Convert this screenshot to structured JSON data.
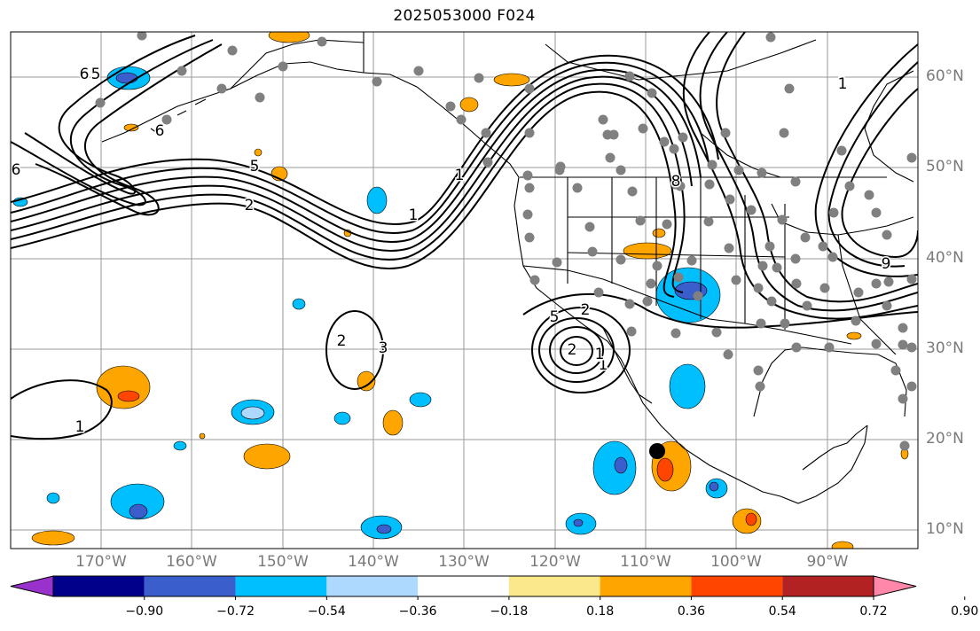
{
  "title": "2025053000 F024",
  "map": {
    "type": "weather-forecast-map",
    "projection": "equirectangular",
    "lon_range": [
      -180,
      -80
    ],
    "lat_range": [
      8,
      65
    ],
    "gridlines": true,
    "lon_labels": [
      "170°W",
      "160°W",
      "150°W",
      "140°W",
      "130°W",
      "120°W",
      "110°W",
      "100°W",
      "90°W"
    ],
    "lat_labels": [
      "60°N",
      "50°N",
      "40°N",
      "30°N",
      "20°N",
      "10°N"
    ],
    "contour_labels": [
      "6",
      "5",
      "6",
      "6",
      "5",
      "2",
      "1",
      "1",
      "2",
      "2",
      "1",
      "2",
      "3",
      "1",
      "5",
      "1",
      "8",
      "9",
      "1"
    ],
    "station_color": "#808080",
    "marker_color": "#000000"
  },
  "colorbar": {
    "tick_labels": [
      "−0.90",
      "−0.72",
      "−0.54",
      "−0.36",
      "−0.18",
      "0.18",
      "0.36",
      "0.54",
      "0.72",
      "0.90"
    ],
    "colors": [
      "#9932cc",
      "#00008b",
      "#3a5fcd",
      "#00bfff",
      "#add8ff",
      "#ffffff",
      "#fbe88a",
      "#ffa500",
      "#ff4500",
      "#b22222",
      "#ff88aa"
    ],
    "extend": "both"
  }
}
